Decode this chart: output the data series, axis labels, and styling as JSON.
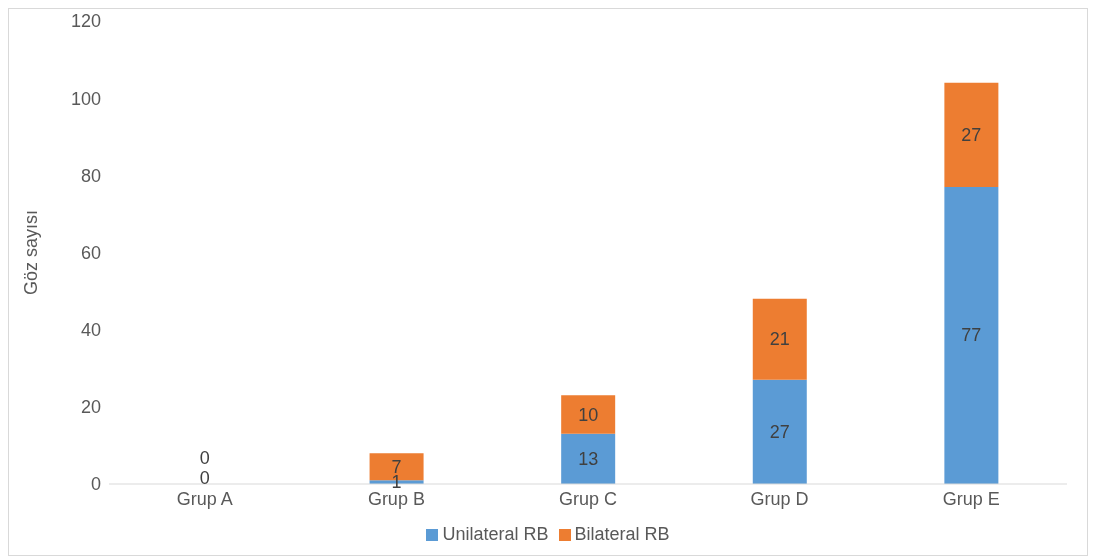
{
  "chart_data": {
    "type": "bar",
    "ylabel": "Göz sayısı",
    "categories": [
      "Grup A",
      "Grup B",
      "Grup C",
      "Grup D",
      "Grup E"
    ],
    "series": [
      {
        "name": "Unilateral RB",
        "color": "#5b9bd5",
        "values": [
          0,
          1,
          13,
          27,
          77
        ]
      },
      {
        "name": "Bilateral RB",
        "color": "#ed7d31",
        "values": [
          0,
          7,
          10,
          21,
          27
        ]
      }
    ],
    "stacked": true,
    "ylim": [
      0,
      120
    ],
    "yticks": [
      0,
      20,
      40,
      60,
      80,
      100,
      120
    ],
    "grid": false,
    "legend": "bottom",
    "data_labels": true
  }
}
